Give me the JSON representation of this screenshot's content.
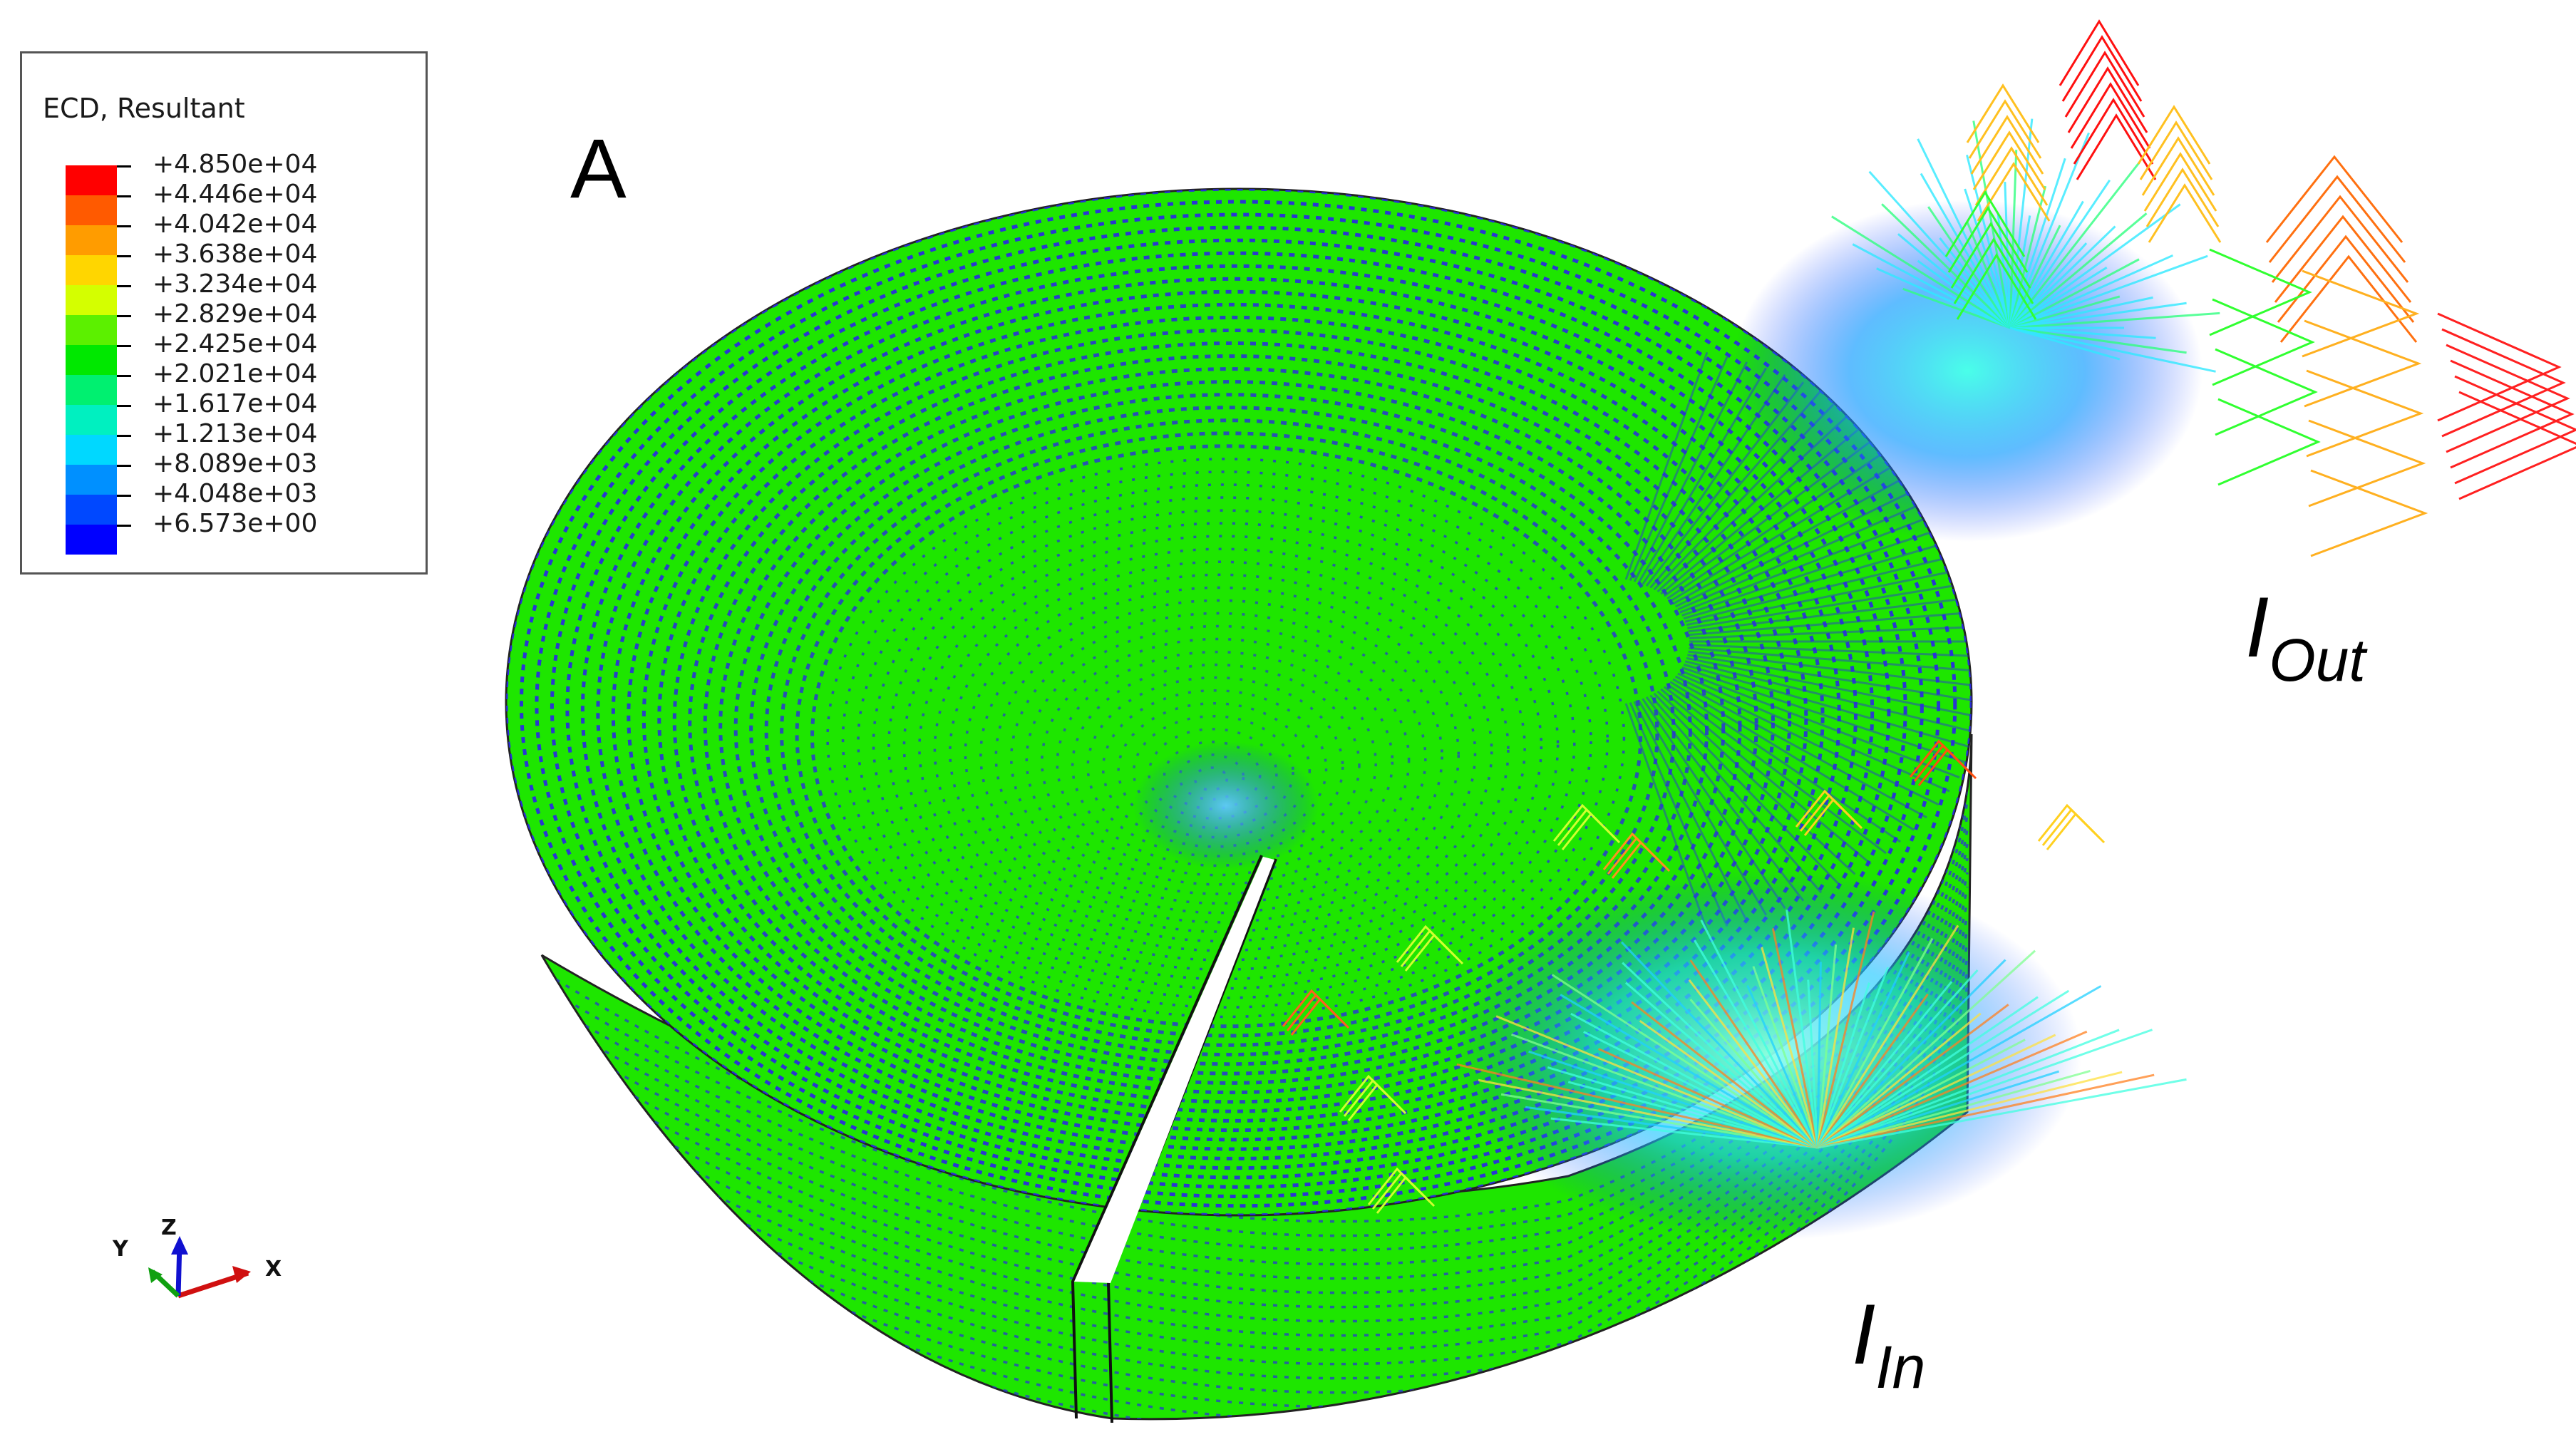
{
  "legend": {
    "title": "ECD, Resultant",
    "entries": [
      {
        "label": "+4.850e+04",
        "color": "#ff0000"
      },
      {
        "label": "+4.446e+04",
        "color": "#ff5a00"
      },
      {
        "label": "+4.042e+04",
        "color": "#ff9c00"
      },
      {
        "label": "+3.638e+04",
        "color": "#ffd600"
      },
      {
        "label": "+3.234e+04",
        "color": "#d4ff00"
      },
      {
        "label": "+2.829e+04",
        "color": "#5cf000"
      },
      {
        "label": "+2.425e+04",
        "color": "#00e800"
      },
      {
        "label": "+2.021e+04",
        "color": "#00f070"
      },
      {
        "label": "+1.617e+04",
        "color": "#00f0c0"
      },
      {
        "label": "+1.213e+04",
        "color": "#00d8ff"
      },
      {
        "label": "+8.089e+03",
        "color": "#0090ff"
      },
      {
        "label": "+4.048e+03",
        "color": "#0048ff"
      },
      {
        "label": "+6.573e+00",
        "color": "#0000ff"
      }
    ]
  },
  "panel_label": "A",
  "current_out": {
    "main": "I",
    "sub": "Out"
  },
  "current_in": {
    "main": "I",
    "sub": "In"
  },
  "triad": {
    "x": "X",
    "y": "Y",
    "z": "Z"
  },
  "colors": {
    "body": "#1ee600",
    "dot": "#2a2ae0",
    "edge": "#222222"
  }
}
